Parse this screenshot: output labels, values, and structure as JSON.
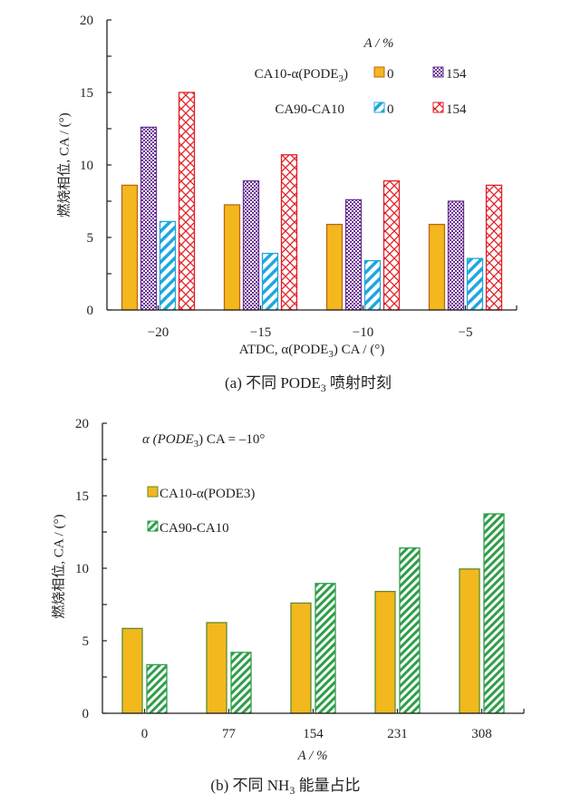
{
  "chart_data": [
    {
      "type": "bar",
      "panel": "a",
      "caption": {
        "prefix": "(a)  不同 PODE",
        "sub": "3",
        "suffix": " 喷射时刻"
      },
      "xlabel": {
        "prefix": "ATDC, α(PODE",
        "sub": "3",
        "suffix": ") CA / (°)"
      },
      "ylabel": "燃烧相位, CA / (°)",
      "ylim": [
        0,
        20
      ],
      "yticks": [
        0,
        5,
        10,
        15,
        20
      ],
      "yminor": [
        2.5,
        7.5,
        12.5,
        17.5
      ],
      "categories": [
        "−20",
        "−15",
        "−10",
        "−5"
      ],
      "legend_title": "A / %",
      "legend_groups": [
        {
          "prefix": "CA10-α(PODE",
          "sub": "3",
          "suffix": ")"
        },
        {
          "prefix": "CA90-CA10",
          "sub": "",
          "suffix": ""
        }
      ],
      "series": [
        {
          "name": "CA10-α(PODE3) 0",
          "legend_label": "0",
          "color": "#F2B81E",
          "border": "#C0621A",
          "pattern": "solid",
          "values": [
            8.6,
            7.25,
            5.9,
            5.9
          ]
        },
        {
          "name": "CA10-α(PODE3) 154",
          "legend_label": "154",
          "color": "#6B3294",
          "border": "#6B3294",
          "pattern": "checker",
          "values": [
            12.6,
            8.9,
            7.6,
            7.5
          ]
        },
        {
          "name": "CA90-CA10 0",
          "legend_label": "0",
          "color": "#1EA7DE",
          "border": "#1EA7DE",
          "pattern": "diag",
          "values": [
            6.1,
            3.9,
            3.4,
            3.55
          ]
        },
        {
          "name": "CA90-CA10 154",
          "legend_label": "154",
          "color": "#E31E24",
          "border": "#E31E24",
          "pattern": "cross",
          "values": [
            15.0,
            10.7,
            8.9,
            8.6
          ]
        }
      ]
    },
    {
      "type": "bar",
      "panel": "b",
      "caption": {
        "prefix": "(b)  不同 NH",
        "sub": "3",
        "suffix": " 能量占比"
      },
      "xlabel": {
        "prefix": "A / %",
        "sub": "",
        "suffix": ""
      },
      "ylabel": "燃烧相位, CA  / (°)",
      "annotation": {
        "prefix": "α (PODE",
        "sub": "3",
        "suffix": ")  CA = –10°"
      },
      "ylim": [
        0,
        20
      ],
      "yticks": [
        0,
        5,
        10,
        15,
        20
      ],
      "yminor": [
        2.5,
        7.5,
        12.5,
        17.5
      ],
      "categories": [
        "0",
        "77",
        "154",
        "231",
        "308"
      ],
      "series": [
        {
          "name": "CA10-α(PODE3)",
          "legend_label": "CA10-α(PODE3)",
          "color": "#F2B81E",
          "border": "#5E8C2C",
          "pattern": "solid",
          "values": [
            5.85,
            6.25,
            7.6,
            8.4,
            9.95
          ]
        },
        {
          "name": "CA90-CA10",
          "legend_label": "CA90-CA10",
          "color": "#2E9E48",
          "border": "#2E9E48",
          "pattern": "diagg",
          "values": [
            3.35,
            4.2,
            8.95,
            11.4,
            13.75
          ]
        }
      ]
    }
  ]
}
